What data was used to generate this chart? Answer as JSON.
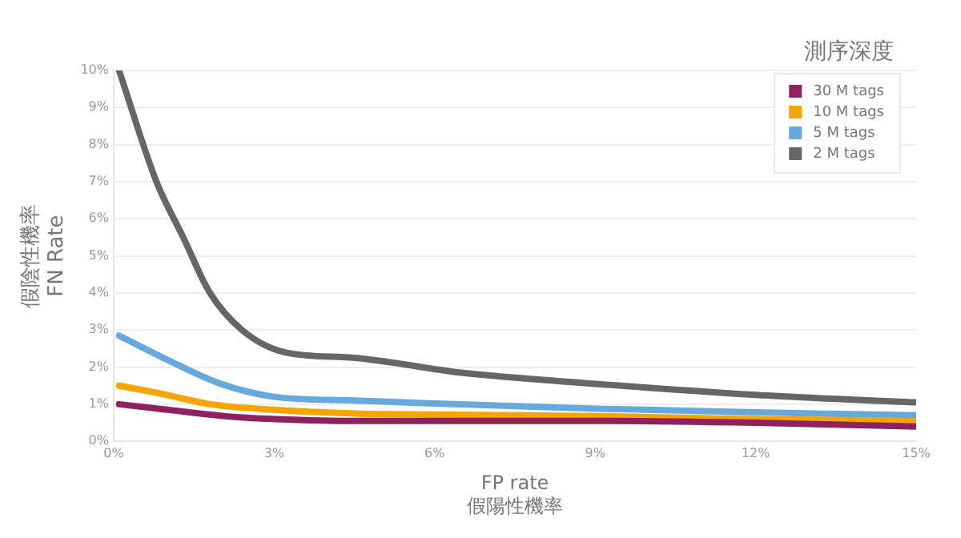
{
  "chart_data": {
    "type": "line",
    "xlabel": "FP rate\n假陽性機率",
    "ylabel": "假陰性機率\nFN Rate",
    "legend_title": "測序深度",
    "legend": "top right",
    "grid": "y",
    "marker": "none",
    "line_style": "solid",
    "xlim": [
      0,
      15
    ],
    "xticks": [
      {
        "value": 0,
        "label": "0%"
      },
      {
        "value": 3,
        "label": "3%"
      },
      {
        "value": 6,
        "label": "6%"
      },
      {
        "value": 9,
        "label": "9%"
      },
      {
        "value": 12,
        "label": "12%"
      },
      {
        "value": 15,
        "label": "15%"
      }
    ],
    "ylim": [
      0,
      10
    ],
    "yticks": [
      {
        "value": 0,
        "label": "0%"
      },
      {
        "value": 1,
        "label": "1%"
      },
      {
        "value": 2,
        "label": "2%"
      },
      {
        "value": 3,
        "label": "3%"
      },
      {
        "value": 4,
        "label": "4%"
      },
      {
        "value": 5,
        "label": "5%"
      },
      {
        "value": 6,
        "label": "6%"
      },
      {
        "value": 7,
        "label": "7%"
      },
      {
        "value": 8,
        "label": "8%"
      },
      {
        "value": 9,
        "label": "9%"
      },
      {
        "value": 10,
        "label": "10%"
      }
    ],
    "series": [
      {
        "name": "30 M tags",
        "color": "#8e2260",
        "x": [
          0.1,
          1,
          2.3,
          3,
          4.5,
          6,
          9,
          12,
          15
        ],
        "values": [
          1.0,
          0.85,
          0.65,
          0.6,
          0.55,
          0.55,
          0.55,
          0.5,
          0.4
        ]
      },
      {
        "name": "10 M tags",
        "color": "#f6a400",
        "x": [
          0.1,
          1,
          1.8,
          3,
          4.5,
          6,
          9,
          12,
          15
        ],
        "values": [
          1.5,
          1.25,
          1.0,
          0.85,
          0.75,
          0.72,
          0.68,
          0.6,
          0.55
        ]
      },
      {
        "name": "5 M tags",
        "color": "#65a9dd",
        "x": [
          0.1,
          1,
          2,
          3,
          4.5,
          6,
          9,
          12,
          15
        ],
        "values": [
          2.85,
          2.2,
          1.55,
          1.2,
          1.1,
          1.02,
          0.88,
          0.78,
          0.7
        ]
      },
      {
        "name": "2 M tags",
        "color": "#666666",
        "x": [
          0.1,
          0.8,
          1.3,
          1.8,
          2.4,
          3.2,
          4.5,
          6.5,
          9,
          12,
          15
        ],
        "values": [
          10,
          7,
          5.5,
          4,
          3,
          2.4,
          2.25,
          1.85,
          1.55,
          1.25,
          1.05
        ]
      }
    ]
  }
}
